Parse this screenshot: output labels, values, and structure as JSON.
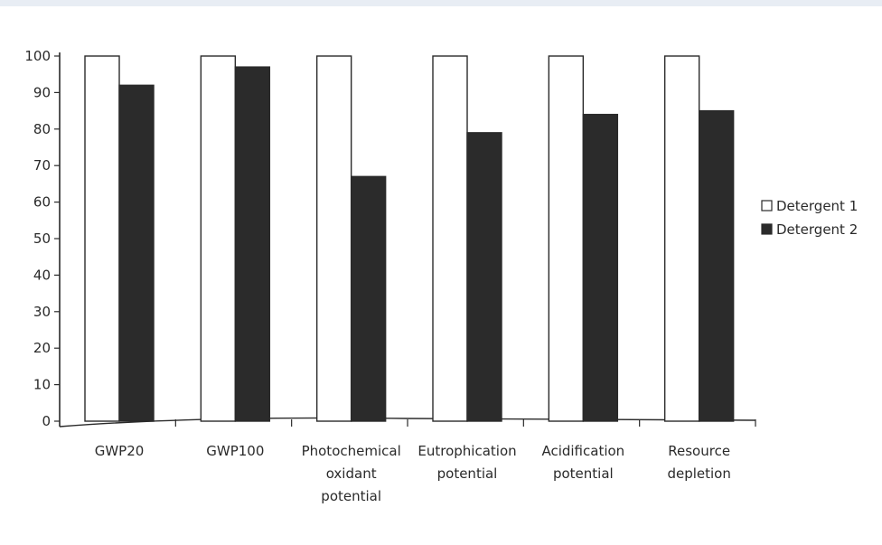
{
  "chart_data": {
    "type": "bar",
    "categories": [
      [
        "GWP20"
      ],
      [
        "GWP100"
      ],
      [
        "Photochemical",
        "oxidant",
        "potential"
      ],
      [
        "Eutrophication",
        "potential"
      ],
      [
        "Acidification",
        "potential"
      ],
      [
        "Resource",
        "depletion"
      ]
    ],
    "series": [
      {
        "name": "Detergent 1",
        "values": [
          100,
          100,
          100,
          100,
          100,
          100
        ],
        "color": "#ffffff"
      },
      {
        "name": "Detergent 2",
        "values": [
          92,
          97,
          67,
          79,
          84,
          85
        ],
        "color": "#2b2b2b"
      }
    ],
    "yticks": [
      "0",
      "10",
      "20",
      "30",
      "40",
      "50",
      "60",
      "70",
      "80",
      "90",
      "100"
    ],
    "ylim": [
      0,
      100
    ],
    "grid": false,
    "legend_position": "right"
  }
}
